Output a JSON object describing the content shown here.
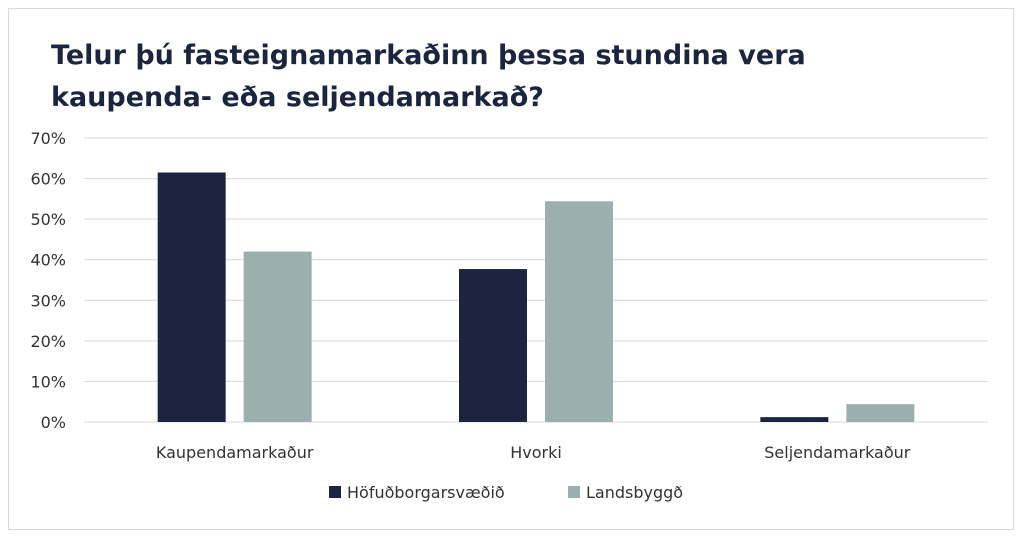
{
  "colors": {
    "series1": "#1b2540",
    "series2": "#9bb0ae",
    "grid": "#d9d9d9",
    "text": "#333333"
  },
  "chart_data": {
    "type": "bar",
    "title": "Telur þú fasteignamarkaðinn þessa stundina vera kaupenda- eða seljendamarkað?",
    "categories": [
      "Kaupendamarkaður",
      "Hvorki",
      "Seljendamarkaður"
    ],
    "series": [
      {
        "name": "Höfuðborgarsvæðið",
        "values": [
          61.5,
          37.7,
          1.2
        ]
      },
      {
        "name": "Landsbyggð",
        "values": [
          42.0,
          54.4,
          4.4
        ]
      }
    ],
    "ylim": [
      0,
      70
    ],
    "yticks": [
      "0%",
      "10%",
      "20%",
      "30%",
      "40%",
      "50%",
      "60%",
      "70%"
    ],
    "grid": true,
    "legend": "bottom"
  }
}
